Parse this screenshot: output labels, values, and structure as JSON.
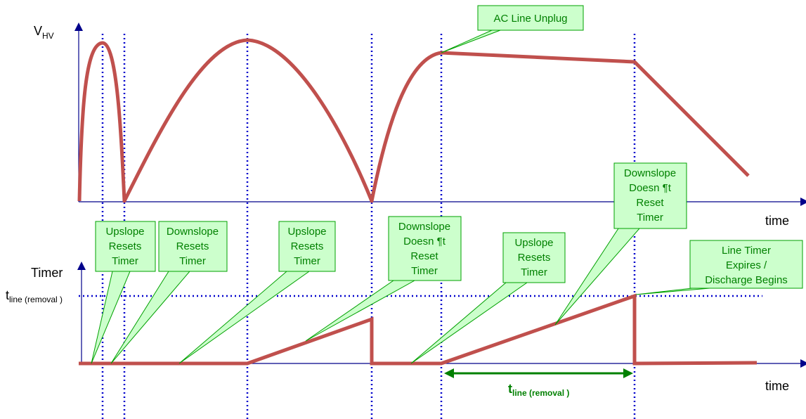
{
  "top_plot": {
    "ylabel_main": "V",
    "ylabel_sub": "HV",
    "xlabel": "time"
  },
  "bottom_plot": {
    "ylabel": "Timer",
    "threshold_main": "t",
    "threshold_sub": "line (removal )",
    "xlabel": "time"
  },
  "duration_label": {
    "main": "t",
    "sub": "line (removal )"
  },
  "callouts": {
    "ac_line_unplug": [
      "AC Line Unplug"
    ],
    "upslope_1": [
      "Upslope",
      "Resets",
      "Timer"
    ],
    "downslope_1": [
      "Downslope",
      "Resets",
      "Timer"
    ],
    "upslope_2": [
      "Upslope",
      "Resets",
      "Timer"
    ],
    "downslope_2": [
      "Downslope",
      "Doesn ¶t",
      "Reset",
      "Timer"
    ],
    "upslope_3": [
      "Upslope",
      "Resets",
      "Timer"
    ],
    "downslope_3": [
      "Downslope",
      "Doesn ¶t",
      "Reset",
      "Timer"
    ],
    "line_timer": [
      "Line Timer",
      "Expires /",
      "Discharge Begins"
    ]
  },
  "colors": {
    "waveform": "#c0504d",
    "dotted": "#0000cc",
    "axis": "#00008b",
    "callout_fill": "#ccffcc",
    "callout_text": "#008000"
  }
}
